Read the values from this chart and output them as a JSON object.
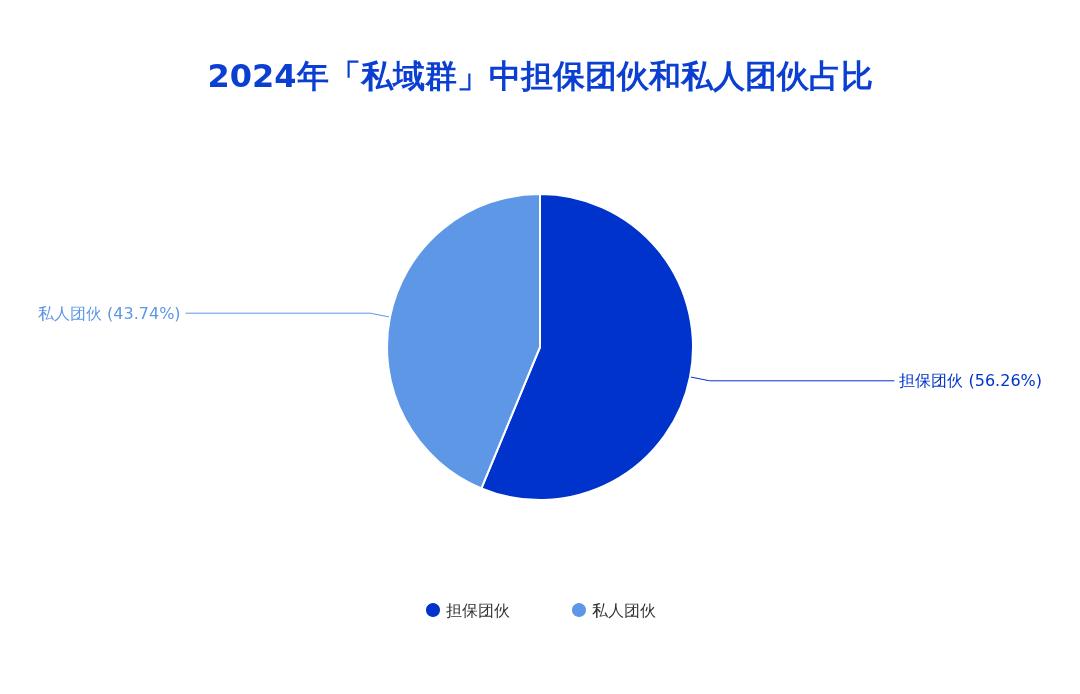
{
  "chart_data": {
    "type": "pie",
    "title": "2024年「私域群」中担保团伙和私人团伙占比",
    "categories": [
      "担保团伙",
      "私人团伙"
    ],
    "values": [
      56.26,
      43.74
    ],
    "colors": [
      "#0033cc",
      "#5e97e6"
    ],
    "value_labels": [
      "(56.26%)",
      "(43.74%)"
    ],
    "legend": "bottom"
  }
}
